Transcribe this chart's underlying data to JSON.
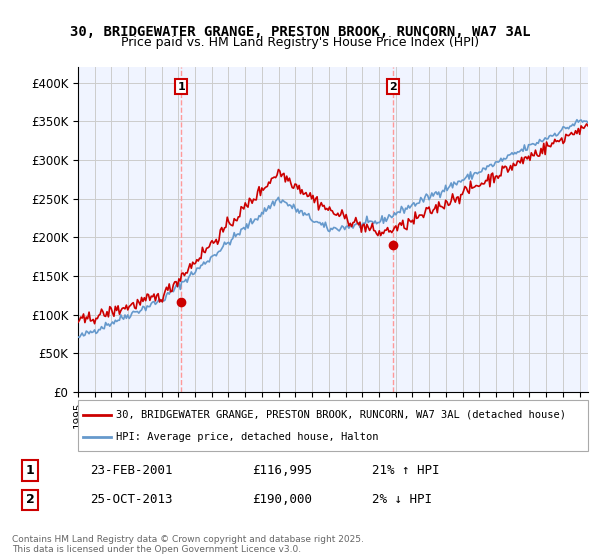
{
  "title_line1": "30, BRIDGEWATER GRANGE, PRESTON BROOK, RUNCORN, WA7 3AL",
  "title_line2": "Price paid vs. HM Land Registry's House Price Index (HPI)",
  "ylabel": "",
  "ylim": [
    0,
    420000
  ],
  "yticks": [
    0,
    50000,
    100000,
    150000,
    200000,
    250000,
    300000,
    350000,
    400000
  ],
  "ytick_labels": [
    "£0",
    "£50K",
    "£100K",
    "£150K",
    "£200K",
    "£250K",
    "£300K",
    "£350K",
    "£400K"
  ],
  "legend_entry1": "30, BRIDGEWATER GRANGE, PRESTON BROOK, RUNCORN, WA7 3AL (detached house)",
  "legend_entry2": "HPI: Average price, detached house, Halton",
  "marker1_label": "1",
  "marker1_date": "23-FEB-2001",
  "marker1_price": 116995,
  "marker1_note": "21% ↑ HPI",
  "marker2_label": "2",
  "marker2_date": "25-OCT-2013",
  "marker2_price": 190000,
  "marker2_note": "2% ↓ HPI",
  "color_red": "#cc0000",
  "color_blue": "#6699cc",
  "color_vline": "#ff9999",
  "footnote": "Contains HM Land Registry data © Crown copyright and database right 2025.\nThis data is licensed under the Open Government Licence v3.0.",
  "bg_color": "#f0f4ff",
  "grid_color": "#cccccc"
}
